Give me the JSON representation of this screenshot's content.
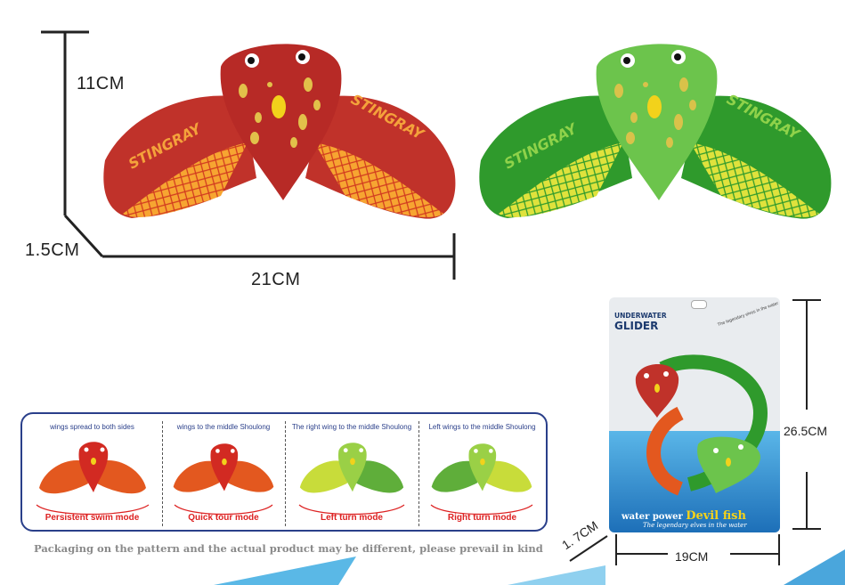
{
  "dimensions": {
    "height": "11CM",
    "thickness": "1.5CM",
    "width": "21CM",
    "package_height": "26.5CM",
    "package_width": "19CM",
    "package_depth": "1. 7CM"
  },
  "modes": [
    {
      "title": "wings spread to both sides",
      "label": "Persistent swim mode",
      "color": "red"
    },
    {
      "title": "wings to the middle Shoulong",
      "label": "Quick tour mode",
      "color": "red"
    },
    {
      "title": "The right wing to the middle Shoulong",
      "label": "Left turn mode",
      "color": "green"
    },
    {
      "title": "Left wings to the middle Shoulong",
      "label": "Right turn mode",
      "color": "green"
    }
  ],
  "disclaimer": "Packaging on the pattern and the actual product may be different, please prevail in kind",
  "package": {
    "brand_line1": "UNDERWATER",
    "brand_line2": "GLIDER",
    "footer_prefix": "water power ",
    "footer_title": "Devil fish",
    "footer_sub": "The legendary elves in the water",
    "top_text": "The legendary elves in the water"
  },
  "wing_text": "STINGRAY",
  "colors": {
    "red_body": "#c0322a",
    "red_wing": "#e3581f",
    "orange_net": "#f7a531",
    "green_body": "#5fbe45",
    "green_wing": "#2f9a2c",
    "yellow_net": "#dfe23c",
    "spot": "#e2c04a",
    "accent_blue": "#2a3f8a"
  }
}
